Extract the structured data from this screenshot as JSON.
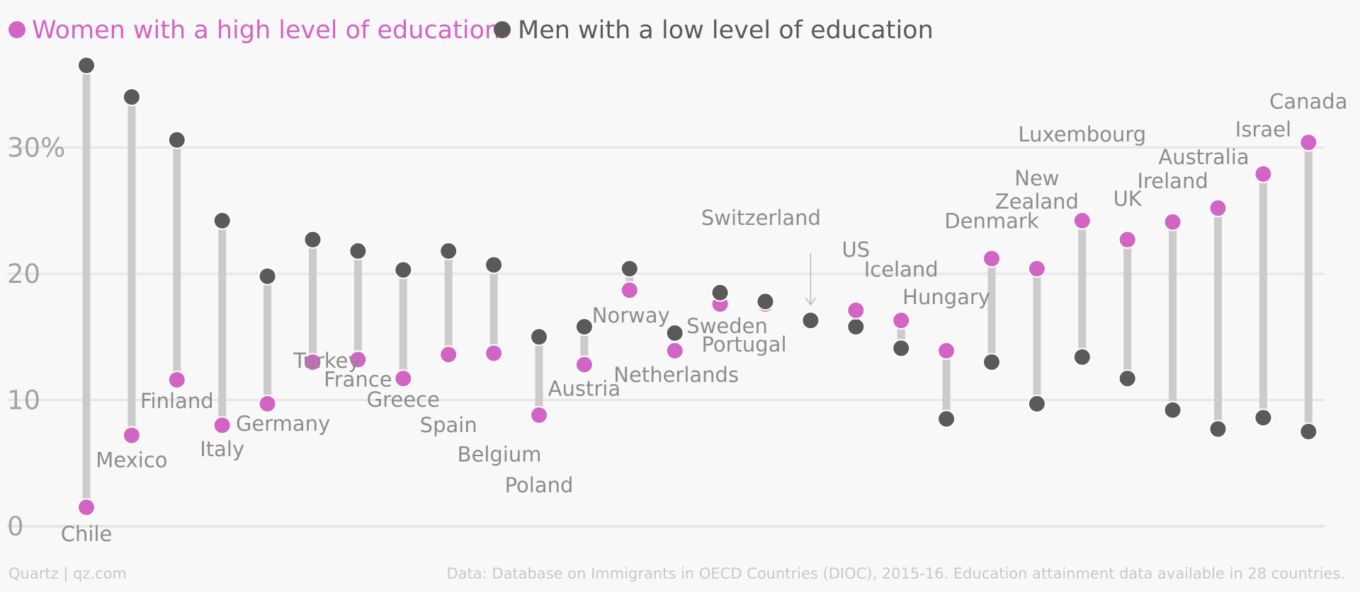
{
  "chart_data": {
    "type": "dumbbell",
    "legend": [
      {
        "key": "women_high",
        "label": "Women with a high level of education",
        "color": "#d264c4"
      },
      {
        "key": "men_low",
        "label": "Men with a low level of education",
        "color": "#5a5a5a"
      }
    ],
    "y_ticks": [
      {
        "value": 0,
        "label": "0"
      },
      {
        "value": 10,
        "label": "10"
      },
      {
        "value": 20,
        "label": "20"
      },
      {
        "value": 30,
        "label": "30%"
      }
    ],
    "ylim": [
      0,
      37
    ],
    "grid": true,
    "colors": {
      "women": "#d264c4",
      "men": "#5a5a5a",
      "connector": "#cbcbcb",
      "grid": "#e6e6e6",
      "arrow": "#b9b9b9"
    },
    "series_values": [
      {
        "country": "Chile",
        "women_high": 1.5,
        "men_low": 36.5
      },
      {
        "country": "Mexico",
        "women_high": 7.2,
        "men_low": 34.0
      },
      {
        "country": "Finland",
        "women_high": 11.6,
        "men_low": 30.6
      },
      {
        "country": "Italy",
        "women_high": 8.0,
        "men_low": 24.2
      },
      {
        "country": "Germany",
        "women_high": 9.7,
        "men_low": 19.8
      },
      {
        "country": "Turkey",
        "women_high": 13.0,
        "men_low": 22.7
      },
      {
        "country": "France",
        "women_high": 13.2,
        "men_low": 21.8
      },
      {
        "country": "Greece",
        "women_high": 11.7,
        "men_low": 20.3
      },
      {
        "country": "Spain",
        "women_high": 13.6,
        "men_low": 21.8
      },
      {
        "country": "Belgium",
        "women_high": 13.7,
        "men_low": 20.7
      },
      {
        "country": "Poland",
        "women_high": 8.8,
        "men_low": 15.0
      },
      {
        "country": "Austria",
        "women_high": 12.8,
        "men_low": 15.8
      },
      {
        "country": "Norway",
        "women_high": 18.7,
        "men_low": 20.4
      },
      {
        "country": "Netherlands",
        "women_high": 13.9,
        "men_low": 15.3
      },
      {
        "country": "Sweden",
        "women_high": 17.6,
        "men_low": 18.5
      },
      {
        "country": "Portugal",
        "women_high": 17.6,
        "men_low": 17.8
      },
      {
        "country": "Switzerland",
        "women_high": 16.3,
        "men_low": 16.3
      },
      {
        "country": "US",
        "women_high": 17.1,
        "men_low": 15.8
      },
      {
        "country": "Iceland",
        "women_high": 16.3,
        "men_low": 14.1
      },
      {
        "country": "Hungary",
        "women_high": 13.9,
        "men_low": 8.5
      },
      {
        "country": "Denmark",
        "women_high": 21.2,
        "men_low": 13.0
      },
      {
        "country": "New Zealand",
        "women_high": 20.4,
        "men_low": 9.7
      },
      {
        "country": "Luxembourg",
        "women_high": 24.2,
        "men_low": 13.4
      },
      {
        "country": "UK",
        "women_high": 22.7,
        "men_low": 11.7
      },
      {
        "country": "Ireland",
        "women_high": 24.1,
        "men_low": 9.2
      },
      {
        "country": "Australia",
        "women_high": 25.2,
        "men_low": 7.7
      },
      {
        "country": "Israel",
        "women_high": 27.9,
        "men_low": 8.6
      },
      {
        "country": "Canada",
        "women_high": 30.4,
        "men_low": 7.5
      }
    ],
    "labels": [
      {
        "country": "Chile",
        "text": [
          "Chile"
        ],
        "position": "below"
      },
      {
        "country": "Mexico",
        "text": [
          "Mexico"
        ],
        "position": "below"
      },
      {
        "country": "Finland",
        "text": [
          "Finland"
        ],
        "position": "below"
      },
      {
        "country": "Italy",
        "text": [
          "Italy"
        ],
        "position": "below"
      },
      {
        "country": "Germany",
        "text": [
          "Germany"
        ],
        "position": "below"
      },
      {
        "country": "Turkey",
        "text": [
          "Turkey"
        ],
        "position": "below"
      },
      {
        "country": "France",
        "text": [
          "France"
        ],
        "position": "below"
      },
      {
        "country": "Greece",
        "text": [
          "Greece"
        ],
        "position": "below"
      },
      {
        "country": "Spain",
        "text": [
          "Spain"
        ],
        "position": "below"
      },
      {
        "country": "Belgium",
        "text": [
          "Belgium"
        ],
        "position": "below"
      },
      {
        "country": "Poland",
        "text": [
          "Poland"
        ],
        "position": "below"
      },
      {
        "country": "Austria",
        "text": [
          "Austria"
        ],
        "position": "below"
      },
      {
        "country": "Norway",
        "text": [
          "Norway"
        ],
        "position": "below"
      },
      {
        "country": "Netherlands",
        "text": [
          "Netherlands"
        ],
        "position": "below"
      },
      {
        "country": "Sweden",
        "text": [
          "Sweden"
        ],
        "position": "below"
      },
      {
        "country": "Portugal",
        "text": [
          "Portugal"
        ],
        "position": "below"
      },
      {
        "country": "Switzerland",
        "text": [
          "Switzerland"
        ],
        "position": "above-arrow"
      },
      {
        "country": "US",
        "text": [
          "US"
        ],
        "position": "above"
      },
      {
        "country": "Iceland",
        "text": [
          "Iceland"
        ],
        "position": "above"
      },
      {
        "country": "Hungary",
        "text": [
          "Hungary"
        ],
        "position": "above"
      },
      {
        "country": "Denmark",
        "text": [
          "Denmark"
        ],
        "position": "above"
      },
      {
        "country": "New Zealand",
        "text": [
          "New",
          "Zealand"
        ],
        "position": "above"
      },
      {
        "country": "Luxembourg",
        "text": [
          "Luxembourg"
        ],
        "position": "above"
      },
      {
        "country": "UK",
        "text": [
          "UK"
        ],
        "position": "above"
      },
      {
        "country": "Ireland",
        "text": [
          "Ireland"
        ],
        "position": "above"
      },
      {
        "country": "Australia",
        "text": [
          "Australia"
        ],
        "position": "above"
      },
      {
        "country": "Israel",
        "text": [
          "Israel"
        ],
        "position": "above"
      },
      {
        "country": "Canada",
        "text": [
          "Canada"
        ],
        "position": "above"
      }
    ]
  },
  "footer": {
    "credit": "Quartz | qz.com",
    "source": "Data: Database on Immigrants in OECD Countries (DIOC), 2015-16. Education attainment data available in 28 countries."
  }
}
